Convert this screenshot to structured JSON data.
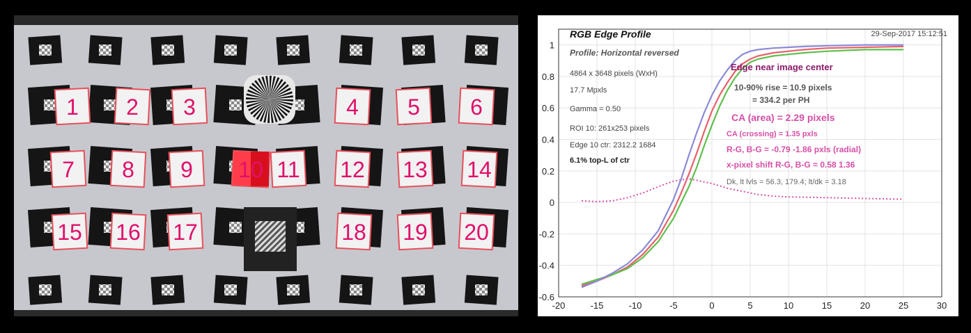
{
  "roi_labels": [
    "1",
    "2",
    "3",
    "4",
    "5",
    "6",
    "7",
    "8",
    "9",
    "10",
    "11",
    "12",
    "13",
    "14",
    "15",
    "16",
    "17",
    "18",
    "19",
    "20"
  ],
  "colors": {
    "red": "#e8606a",
    "green": "#5fbf4c",
    "blue": "#8a8ad6",
    "ca": "#d64fa8",
    "label": "#e0106a",
    "annot": "#8a1a6a"
  },
  "chart_data": {
    "type": "line",
    "title": "RGB Edge Profile",
    "subtitle": "Profile: Horizontal reversed",
    "timestamp": "29-Sep-2017 15:12:51",
    "xlim": [
      -20,
      30
    ],
    "ylim": [
      -0.6,
      1.1
    ],
    "xticks": [
      "-20",
      "-15",
      "-10",
      "-5",
      "0",
      "5",
      "10",
      "15",
      "20",
      "25",
      "30"
    ],
    "yticks": [
      "-0.6",
      "-0.4",
      "-0.2",
      "0",
      "0.2",
      "0.4",
      "0.6",
      "0.8",
      "1"
    ],
    "grid": true,
    "info_lines": [
      "4864 x 3648 pixels (WxH)",
      "17.7 Mpxls",
      "Gamma = 0.50",
      "ROI 10: 261x253 pixels",
      "Edge 10 ctr: 2312.2  1684"
    ],
    "info_bold": "6.1% top-L of ctr",
    "annotations": {
      "heading": "Edge near image center",
      "rise": "10-90% rise = 10.9 pixels",
      "per_ph": "= 334.2 per PH",
      "ca_area": "CA (area) = 2.29 pixels",
      "ca_crossing": "CA (crossing) = 1.35 pxls",
      "rg_bg": "R-G, B-G = -0.79  -1.86 pxls (radial)",
      "xshift": "x-pixel shift R-G, B-G = 0.58  1.36",
      "levels": "Dk, lt lvls = 56.3, 179.4;  lt/dk = 3.18"
    },
    "series": [
      {
        "name": "R",
        "color": "#e8606a",
        "points": [
          [
            -17,
            -0.53
          ],
          [
            -15,
            -0.5
          ],
          [
            -13,
            -0.46
          ],
          [
            -11,
            -0.41
          ],
          [
            -9,
            -0.33
          ],
          [
            -7,
            -0.22
          ],
          [
            -5,
            -0.05
          ],
          [
            -4,
            0.06
          ],
          [
            -3,
            0.18
          ],
          [
            -2,
            0.31
          ],
          [
            -1,
            0.45
          ],
          [
            0,
            0.58
          ],
          [
            1,
            0.68
          ],
          [
            2,
            0.76
          ],
          [
            3,
            0.83
          ],
          [
            4,
            0.88
          ],
          [
            5,
            0.91
          ],
          [
            6,
            0.93
          ],
          [
            8,
            0.95
          ],
          [
            10,
            0.96
          ],
          [
            12,
            0.97
          ],
          [
            15,
            0.98
          ],
          [
            20,
            0.985
          ],
          [
            25,
            0.99
          ]
        ]
      },
      {
        "name": "G",
        "color": "#5fbf4c",
        "points": [
          [
            -17,
            -0.52
          ],
          [
            -15,
            -0.49
          ],
          [
            -13,
            -0.46
          ],
          [
            -11,
            -0.42
          ],
          [
            -9,
            -0.35
          ],
          [
            -7,
            -0.25
          ],
          [
            -5,
            -0.1
          ],
          [
            -4,
            0.0
          ],
          [
            -3,
            0.1
          ],
          [
            -2,
            0.22
          ],
          [
            -1,
            0.36
          ],
          [
            0,
            0.49
          ],
          [
            1,
            0.61
          ],
          [
            2,
            0.71
          ],
          [
            3,
            0.79
          ],
          [
            4,
            0.85
          ],
          [
            5,
            0.89
          ],
          [
            6,
            0.91
          ],
          [
            8,
            0.93
          ],
          [
            10,
            0.94
          ],
          [
            12,
            0.95
          ],
          [
            15,
            0.96
          ],
          [
            20,
            0.97
          ],
          [
            25,
            0.97
          ]
        ]
      },
      {
        "name": "B",
        "color": "#8a8ad6",
        "points": [
          [
            -17,
            -0.54
          ],
          [
            -15,
            -0.5
          ],
          [
            -13,
            -0.45
          ],
          [
            -11,
            -0.39
          ],
          [
            -9,
            -0.3
          ],
          [
            -7,
            -0.18
          ],
          [
            -5,
            0.02
          ],
          [
            -4,
            0.15
          ],
          [
            -3,
            0.3
          ],
          [
            -2,
            0.44
          ],
          [
            -1,
            0.57
          ],
          [
            0,
            0.68
          ],
          [
            1,
            0.77
          ],
          [
            2,
            0.84
          ],
          [
            3,
            0.9
          ],
          [
            4,
            0.94
          ],
          [
            5,
            0.96
          ],
          [
            6,
            0.97
          ],
          [
            8,
            0.98
          ],
          [
            10,
            0.985
          ],
          [
            12,
            0.99
          ],
          [
            15,
            0.995
          ],
          [
            20,
            1.0
          ],
          [
            25,
            1.0
          ]
        ]
      },
      {
        "name": "CA",
        "color": "#d64fa8",
        "dotted": true,
        "points": [
          [
            -17,
            0.01
          ],
          [
            -15,
            0.005
          ],
          [
            -13,
            0.01
          ],
          [
            -11,
            0.03
          ],
          [
            -9,
            0.06
          ],
          [
            -7,
            0.1
          ],
          [
            -5,
            0.135
          ],
          [
            -3,
            0.15
          ],
          [
            -2,
            0.14
          ],
          [
            0,
            0.12
          ],
          [
            2,
            0.09
          ],
          [
            4,
            0.07
          ],
          [
            6,
            0.05
          ],
          [
            8,
            0.04
          ],
          [
            10,
            0.035
          ],
          [
            15,
            0.03
          ],
          [
            20,
            0.025
          ],
          [
            25,
            0.02
          ]
        ]
      }
    ]
  }
}
